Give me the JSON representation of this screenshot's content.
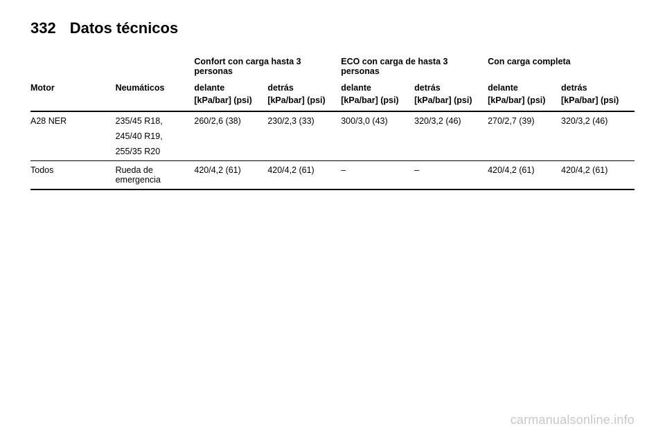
{
  "page_number": "332",
  "section_title": "Datos técnicos",
  "headers": {
    "motor": "Motor",
    "neumaticos": "Neumáticos",
    "group_confort": "Confort con carga hasta 3 personas",
    "group_eco": "ECO con carga de hasta 3 personas",
    "group_full": "Con carga completa",
    "delante": "delante",
    "detras": "detrás",
    "unit": "[kPa/bar] (psi)"
  },
  "rows": [
    {
      "motor": "A28 NER",
      "tires": [
        "235/45 R18,",
        "245/40 R19,",
        "255/35 R20"
      ],
      "vals": [
        "260/2,6 (38)",
        "230/2,3 (33)",
        "300/3,0 (43)",
        "320/3,2 (46)",
        "270/2,7 (39)",
        "320/3,2 (46)"
      ]
    },
    {
      "motor": "Todos",
      "tires": [
        "Rueda de emergencia"
      ],
      "vals": [
        "420/4,2 (61)",
        "420/4,2 (61)",
        "–",
        "–",
        "420/4,2 (61)",
        "420/4,2 (61)"
      ]
    }
  ],
  "watermark": "carmanualsonline.info"
}
